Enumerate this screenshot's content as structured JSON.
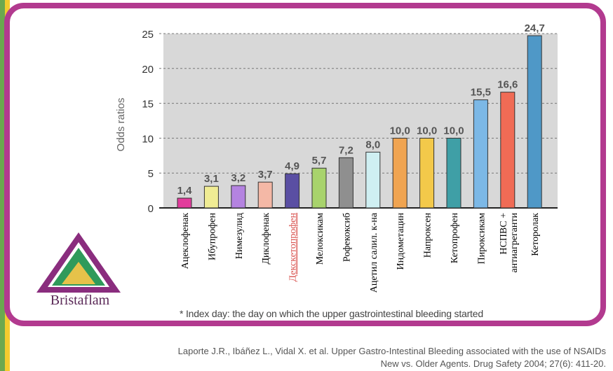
{
  "colors": {
    "frame": "#b23a8f",
    "plot_bg": "#d8d8d8",
    "value_label": "#555555"
  },
  "brand": {
    "name": "Bristaflam",
    "logo_icon": "triangle-logo-icon"
  },
  "footnote": "* Index day: the day on which the upper gastrointestinal bleeding started",
  "citation": {
    "line1": "Laporte J.R., Ibáñez L., Vidal X. et al. Upper Gastro-Intestinal Bleeding associated with the use of NSAIDs",
    "line2": "New vs. Older Agents. Drug Safety 2004; 27(6): 411-20."
  },
  "chart_data": {
    "type": "bar",
    "ylabel": "Odds ratios",
    "ylim": [
      0,
      25
    ],
    "yticks": [
      "0",
      "5",
      "10",
      "15",
      "20",
      "25"
    ],
    "categories": [
      "Ацеклофенак",
      "Ибупрофен",
      "Нимезулид",
      "Диклофенак",
      "Декскетопрофен",
      "Мелоксикам",
      "Рофекоксиб",
      "Ацетил салил. к-на",
      "Индометацин",
      "Напроксен",
      "Кетопрофен",
      "Пироксикам",
      "НСПВС + антиагреганти",
      "Кеторолак"
    ],
    "values": [
      1.4,
      3.1,
      3.2,
      3.7,
      4.9,
      5.7,
      7.2,
      8.0,
      10.0,
      10.0,
      10.0,
      15.5,
      16.6,
      24.7
    ],
    "labels": [
      "1,4",
      "3,1",
      "3,2",
      "3,7",
      "4,9",
      "5,7",
      "7,2",
      "8,0",
      "10,0",
      "10,0",
      "10,0",
      "15,5",
      "16,6",
      "24,7"
    ],
    "bar_colors": [
      "#e23c9c",
      "#f0ec94",
      "#b483e0",
      "#f4b8a6",
      "#5a4fa3",
      "#a8d36c",
      "#8f8f8f",
      "#cfeff2",
      "#f0a451",
      "#f3c94a",
      "#3f9fa6",
      "#7cb8e6",
      "#f06b55",
      "#4f98c7"
    ],
    "label_colors": [
      "#000000",
      "#000000",
      "#000000",
      "#000000",
      "#d9534f",
      "#000000",
      "#000000",
      "#000000",
      "#000000",
      "#000000",
      "#000000",
      "#000000",
      "#000000",
      "#000000"
    ]
  }
}
